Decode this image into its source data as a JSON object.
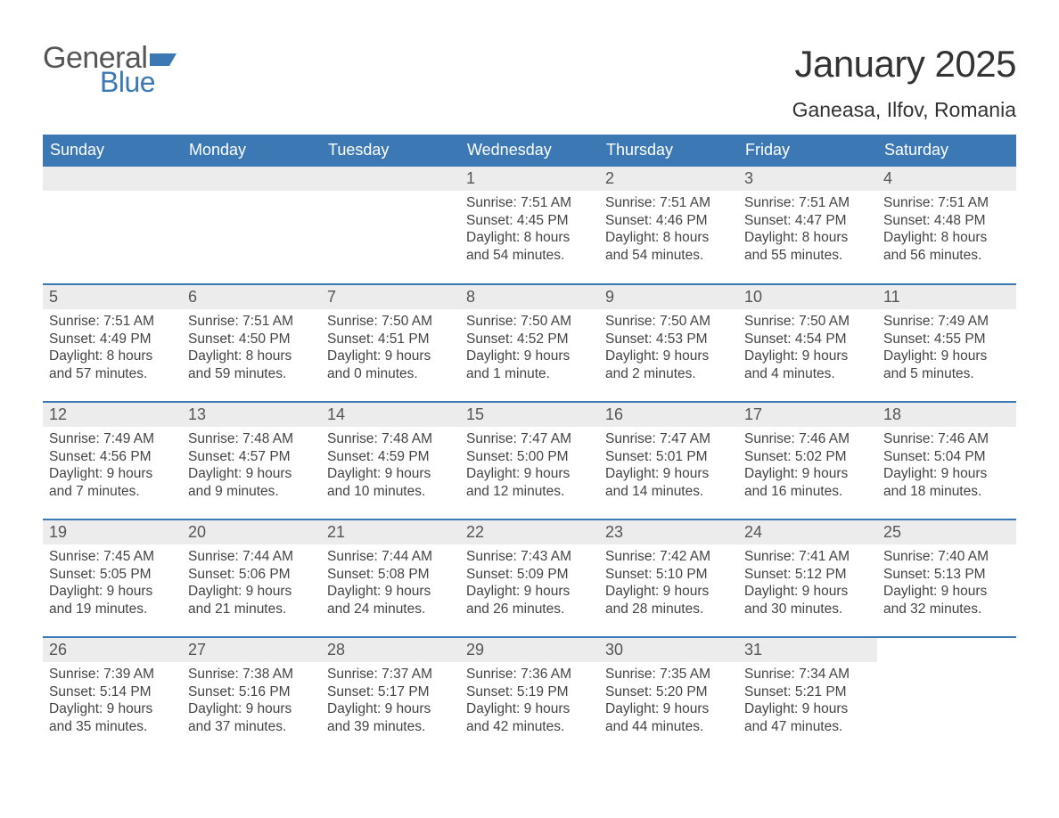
{
  "brand": {
    "word1": "General",
    "word2": "Blue",
    "word1_color": "#555555",
    "word2_color": "#3c79b4",
    "flag_color": "#3c79b4"
  },
  "header": {
    "month_title": "January 2025",
    "location": "Ganeasa, Ilfov, Romania"
  },
  "theme": {
    "header_row_bg": "#3c79b4",
    "header_row_text": "#ffffff",
    "daynum_band_bg": "#ececec",
    "daynum_text": "#555555",
    "rule_color": "#3c79b4",
    "body_text": "#444444",
    "page_bg": "#ffffff"
  },
  "columns": [
    "Sunday",
    "Monday",
    "Tuesday",
    "Wednesday",
    "Thursday",
    "Friday",
    "Saturday"
  ],
  "weeks": [
    [
      {
        "blank": true
      },
      {
        "blank": true
      },
      {
        "blank": true
      },
      {
        "day": "1",
        "sunrise": "Sunrise: 7:51 AM",
        "sunset": "Sunset: 4:45 PM",
        "dl1": "Daylight: 8 hours",
        "dl2": "and 54 minutes."
      },
      {
        "day": "2",
        "sunrise": "Sunrise: 7:51 AM",
        "sunset": "Sunset: 4:46 PM",
        "dl1": "Daylight: 8 hours",
        "dl2": "and 54 minutes."
      },
      {
        "day": "3",
        "sunrise": "Sunrise: 7:51 AM",
        "sunset": "Sunset: 4:47 PM",
        "dl1": "Daylight: 8 hours",
        "dl2": "and 55 minutes."
      },
      {
        "day": "4",
        "sunrise": "Sunrise: 7:51 AM",
        "sunset": "Sunset: 4:48 PM",
        "dl1": "Daylight: 8 hours",
        "dl2": "and 56 minutes."
      }
    ],
    [
      {
        "day": "5",
        "sunrise": "Sunrise: 7:51 AM",
        "sunset": "Sunset: 4:49 PM",
        "dl1": "Daylight: 8 hours",
        "dl2": "and 57 minutes."
      },
      {
        "day": "6",
        "sunrise": "Sunrise: 7:51 AM",
        "sunset": "Sunset: 4:50 PM",
        "dl1": "Daylight: 8 hours",
        "dl2": "and 59 minutes."
      },
      {
        "day": "7",
        "sunrise": "Sunrise: 7:50 AM",
        "sunset": "Sunset: 4:51 PM",
        "dl1": "Daylight: 9 hours",
        "dl2": "and 0 minutes."
      },
      {
        "day": "8",
        "sunrise": "Sunrise: 7:50 AM",
        "sunset": "Sunset: 4:52 PM",
        "dl1": "Daylight: 9 hours",
        "dl2": "and 1 minute."
      },
      {
        "day": "9",
        "sunrise": "Sunrise: 7:50 AM",
        "sunset": "Sunset: 4:53 PM",
        "dl1": "Daylight: 9 hours",
        "dl2": "and 2 minutes."
      },
      {
        "day": "10",
        "sunrise": "Sunrise: 7:50 AM",
        "sunset": "Sunset: 4:54 PM",
        "dl1": "Daylight: 9 hours",
        "dl2": "and 4 minutes."
      },
      {
        "day": "11",
        "sunrise": "Sunrise: 7:49 AM",
        "sunset": "Sunset: 4:55 PM",
        "dl1": "Daylight: 9 hours",
        "dl2": "and 5 minutes."
      }
    ],
    [
      {
        "day": "12",
        "sunrise": "Sunrise: 7:49 AM",
        "sunset": "Sunset: 4:56 PM",
        "dl1": "Daylight: 9 hours",
        "dl2": "and 7 minutes."
      },
      {
        "day": "13",
        "sunrise": "Sunrise: 7:48 AM",
        "sunset": "Sunset: 4:57 PM",
        "dl1": "Daylight: 9 hours",
        "dl2": "and 9 minutes."
      },
      {
        "day": "14",
        "sunrise": "Sunrise: 7:48 AM",
        "sunset": "Sunset: 4:59 PM",
        "dl1": "Daylight: 9 hours",
        "dl2": "and 10 minutes."
      },
      {
        "day": "15",
        "sunrise": "Sunrise: 7:47 AM",
        "sunset": "Sunset: 5:00 PM",
        "dl1": "Daylight: 9 hours",
        "dl2": "and 12 minutes."
      },
      {
        "day": "16",
        "sunrise": "Sunrise: 7:47 AM",
        "sunset": "Sunset: 5:01 PM",
        "dl1": "Daylight: 9 hours",
        "dl2": "and 14 minutes."
      },
      {
        "day": "17",
        "sunrise": "Sunrise: 7:46 AM",
        "sunset": "Sunset: 5:02 PM",
        "dl1": "Daylight: 9 hours",
        "dl2": "and 16 minutes."
      },
      {
        "day": "18",
        "sunrise": "Sunrise: 7:46 AM",
        "sunset": "Sunset: 5:04 PM",
        "dl1": "Daylight: 9 hours",
        "dl2": "and 18 minutes."
      }
    ],
    [
      {
        "day": "19",
        "sunrise": "Sunrise: 7:45 AM",
        "sunset": "Sunset: 5:05 PM",
        "dl1": "Daylight: 9 hours",
        "dl2": "and 19 minutes."
      },
      {
        "day": "20",
        "sunrise": "Sunrise: 7:44 AM",
        "sunset": "Sunset: 5:06 PM",
        "dl1": "Daylight: 9 hours",
        "dl2": "and 21 minutes."
      },
      {
        "day": "21",
        "sunrise": "Sunrise: 7:44 AM",
        "sunset": "Sunset: 5:08 PM",
        "dl1": "Daylight: 9 hours",
        "dl2": "and 24 minutes."
      },
      {
        "day": "22",
        "sunrise": "Sunrise: 7:43 AM",
        "sunset": "Sunset: 5:09 PM",
        "dl1": "Daylight: 9 hours",
        "dl2": "and 26 minutes."
      },
      {
        "day": "23",
        "sunrise": "Sunrise: 7:42 AM",
        "sunset": "Sunset: 5:10 PM",
        "dl1": "Daylight: 9 hours",
        "dl2": "and 28 minutes."
      },
      {
        "day": "24",
        "sunrise": "Sunrise: 7:41 AM",
        "sunset": "Sunset: 5:12 PM",
        "dl1": "Daylight: 9 hours",
        "dl2": "and 30 minutes."
      },
      {
        "day": "25",
        "sunrise": "Sunrise: 7:40 AM",
        "sunset": "Sunset: 5:13 PM",
        "dl1": "Daylight: 9 hours",
        "dl2": "and 32 minutes."
      }
    ],
    [
      {
        "day": "26",
        "sunrise": "Sunrise: 7:39 AM",
        "sunset": "Sunset: 5:14 PM",
        "dl1": "Daylight: 9 hours",
        "dl2": "and 35 minutes."
      },
      {
        "day": "27",
        "sunrise": "Sunrise: 7:38 AM",
        "sunset": "Sunset: 5:16 PM",
        "dl1": "Daylight: 9 hours",
        "dl2": "and 37 minutes."
      },
      {
        "day": "28",
        "sunrise": "Sunrise: 7:37 AM",
        "sunset": "Sunset: 5:17 PM",
        "dl1": "Daylight: 9 hours",
        "dl2": "and 39 minutes."
      },
      {
        "day": "29",
        "sunrise": "Sunrise: 7:36 AM",
        "sunset": "Sunset: 5:19 PM",
        "dl1": "Daylight: 9 hours",
        "dl2": "and 42 minutes."
      },
      {
        "day": "30",
        "sunrise": "Sunrise: 7:35 AM",
        "sunset": "Sunset: 5:20 PM",
        "dl1": "Daylight: 9 hours",
        "dl2": "and 44 minutes."
      },
      {
        "day": "31",
        "sunrise": "Sunrise: 7:34 AM",
        "sunset": "Sunset: 5:21 PM",
        "dl1": "Daylight: 9 hours",
        "dl2": "and 47 minutes."
      },
      {
        "blank": true
      }
    ]
  ]
}
